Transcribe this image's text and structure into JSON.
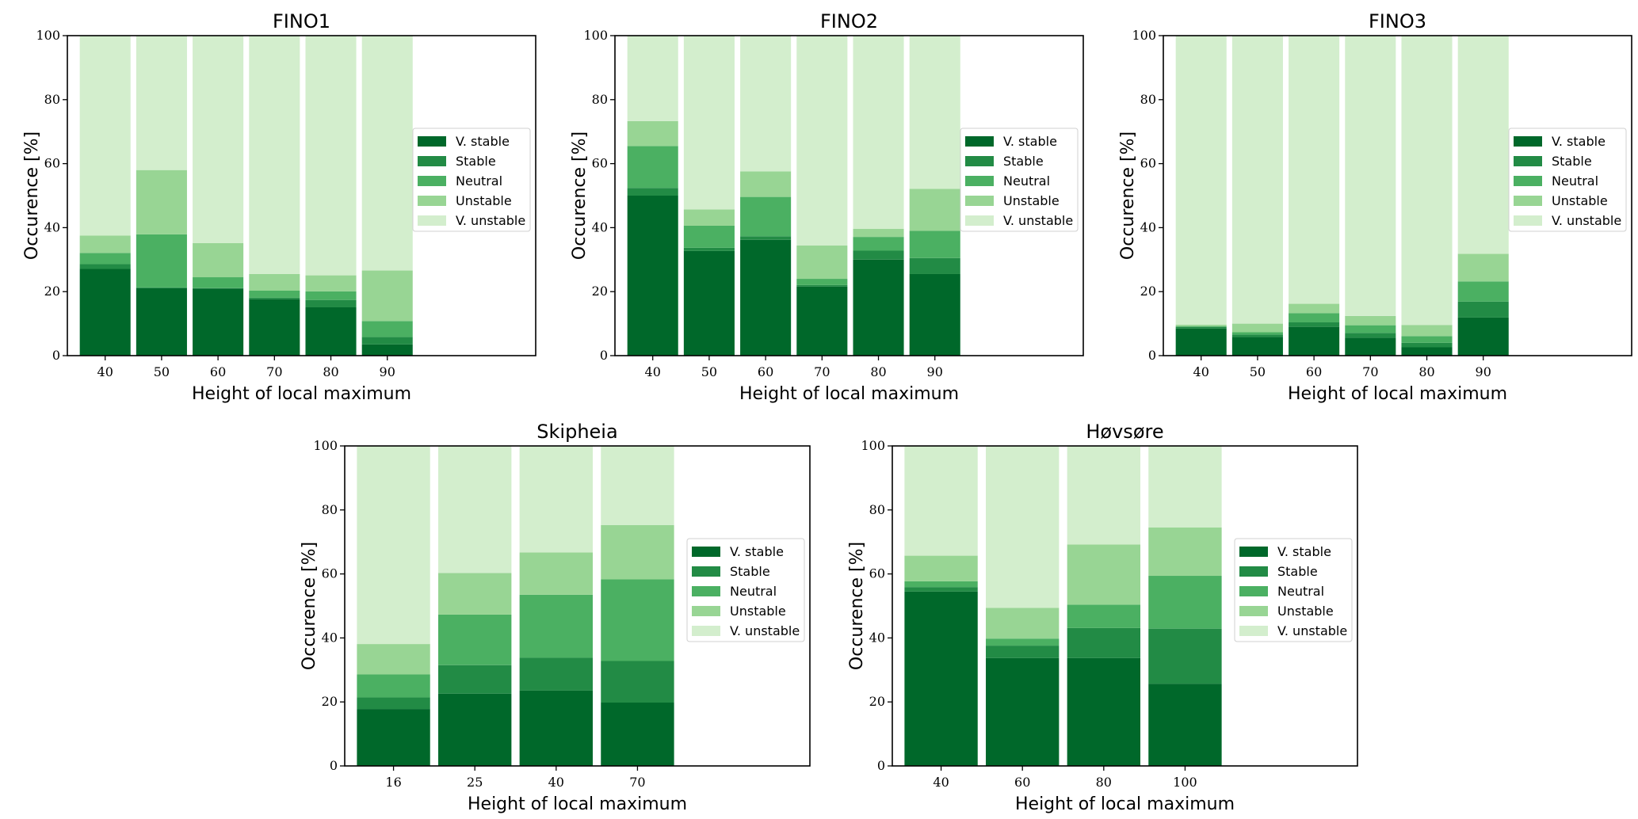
{
  "chart_data": [
    {
      "type": "bar",
      "stacked": true,
      "title": "FINO1",
      "xlabel": "Height of local maximum",
      "ylabel": "Occurence [%]",
      "ylim": [
        0,
        100
      ],
      "yticks": [
        0,
        20,
        40,
        60,
        80,
        100
      ],
      "legend_position": "center-right",
      "categories": [
        "40",
        "50",
        "60",
        "70",
        "80",
        "90"
      ],
      "series": [
        {
          "name": "V. stable",
          "color": "#00682a",
          "values": [
            27.1,
            21.1,
            21.0,
            17.6,
            15.1,
            3.5
          ]
        },
        {
          "name": "Stable",
          "color": "#228b45",
          "values": [
            1.5,
            0.2,
            0.1,
            0.5,
            2.3,
            2.3
          ]
        },
        {
          "name": "Neutral",
          "color": "#4bb062",
          "values": [
            3.5,
            16.6,
            3.4,
            2.2,
            2.7,
            5.0
          ]
        },
        {
          "name": "Unstable",
          "color": "#98d594",
          "values": [
            5.4,
            20.1,
            10.7,
            5.2,
            5.0,
            15.8
          ]
        },
        {
          "name": "V. unstable",
          "color": "#d3eecd",
          "values": [
            62.5,
            42.0,
            64.8,
            74.5,
            74.9,
            73.4
          ]
        }
      ]
    },
    {
      "type": "bar",
      "stacked": true,
      "title": "FINO2",
      "xlabel": "Height of local maximum",
      "ylabel": "Occurence [%]",
      "ylim": [
        0,
        100
      ],
      "yticks": [
        0,
        20,
        40,
        60,
        80,
        100
      ],
      "legend_position": "center-right",
      "categories": [
        "40",
        "50",
        "60",
        "70",
        "80",
        "90"
      ],
      "series": [
        {
          "name": "V. stable",
          "color": "#00682a",
          "values": [
            50.0,
            32.7,
            36.2,
            21.6,
            30.0,
            25.5
          ]
        },
        {
          "name": "Stable",
          "color": "#228b45",
          "values": [
            2.4,
            1.0,
            1.1,
            0.5,
            2.8,
            5.0
          ]
        },
        {
          "name": "Neutral",
          "color": "#4bb062",
          "values": [
            13.1,
            6.9,
            12.3,
            1.9,
            4.3,
            8.5
          ]
        },
        {
          "name": "Unstable",
          "color": "#98d594",
          "values": [
            7.8,
            5.1,
            8.0,
            10.4,
            2.5,
            13.1
          ]
        },
        {
          "name": "V. unstable",
          "color": "#d3eecd",
          "values": [
            26.7,
            54.3,
            42.4,
            65.6,
            60.4,
            47.9
          ]
        }
      ]
    },
    {
      "type": "bar",
      "stacked": true,
      "title": "FINO3",
      "xlabel": "Height of local maximum",
      "ylabel": "Occurence [%]",
      "ylim": [
        0,
        100
      ],
      "yticks": [
        0,
        20,
        40,
        60,
        80,
        100
      ],
      "legend_position": "center-right",
      "categories": [
        "40",
        "50",
        "60",
        "70",
        "80",
        "90"
      ],
      "series": [
        {
          "name": "V. stable",
          "color": "#00682a",
          "values": [
            8.5,
            5.8,
            9.0,
            5.6,
            2.6,
            11.9
          ]
        },
        {
          "name": "Stable",
          "color": "#228b45",
          "values": [
            0.5,
            0.8,
            1.4,
            1.5,
            1.4,
            5.0
          ]
        },
        {
          "name": "Neutral",
          "color": "#4bb062",
          "values": [
            0.2,
            0.7,
            2.9,
            2.4,
            2.1,
            6.3
          ]
        },
        {
          "name": "Unstable",
          "color": "#98d594",
          "values": [
            0.5,
            2.7,
            2.9,
            2.9,
            3.5,
            8.6
          ]
        },
        {
          "name": "V. unstable",
          "color": "#d3eecd",
          "values": [
            90.3,
            90.0,
            83.8,
            87.6,
            90.4,
            68.2
          ]
        }
      ]
    },
    {
      "type": "bar",
      "stacked": true,
      "title": "Skipheia",
      "xlabel": "Height of local maximum",
      "ylabel": "Occurence [%]",
      "ylim": [
        0,
        100
      ],
      "yticks": [
        0,
        20,
        40,
        60,
        80,
        100
      ],
      "legend_position": "center-right",
      "categories": [
        "16",
        "25",
        "40",
        "70"
      ],
      "series": [
        {
          "name": "V. stable",
          "color": "#00682a",
          "values": [
            17.8,
            22.6,
            23.6,
            19.8
          ]
        },
        {
          "name": "Stable",
          "color": "#228b45",
          "values": [
            3.6,
            8.9,
            10.2,
            13.0
          ]
        },
        {
          "name": "Neutral",
          "color": "#4bb062",
          "values": [
            7.2,
            15.8,
            19.7,
            25.5
          ]
        },
        {
          "name": "Unstable",
          "color": "#98d594",
          "values": [
            9.5,
            13.0,
            13.2,
            17.0
          ]
        },
        {
          "name": "V. unstable",
          "color": "#d3eecd",
          "values": [
            61.9,
            39.7,
            33.3,
            24.7
          ]
        }
      ]
    },
    {
      "type": "bar",
      "stacked": true,
      "title": "Høvsøre",
      "xlabel": "Height of local maximum",
      "ylabel": "Occurence [%]",
      "ylim": [
        0,
        100
      ],
      "yticks": [
        0,
        20,
        40,
        60,
        80,
        100
      ],
      "legend_position": "center-right",
      "categories": [
        "40",
        "60",
        "80",
        "100"
      ],
      "series": [
        {
          "name": "V. stable",
          "color": "#00682a",
          "values": [
            54.5,
            33.7,
            33.7,
            25.7
          ]
        },
        {
          "name": "Stable",
          "color": "#228b45",
          "values": [
            1.4,
            3.9,
            9.4,
            17.2
          ]
        },
        {
          "name": "Neutral",
          "color": "#4bb062",
          "values": [
            1.8,
            2.2,
            7.3,
            16.5
          ]
        },
        {
          "name": "Unstable",
          "color": "#98d594",
          "values": [
            8.0,
            9.6,
            18.8,
            15.1
          ]
        },
        {
          "name": "V. unstable",
          "color": "#d3eecd",
          "values": [
            34.3,
            50.6,
            30.8,
            25.5
          ]
        }
      ]
    }
  ]
}
